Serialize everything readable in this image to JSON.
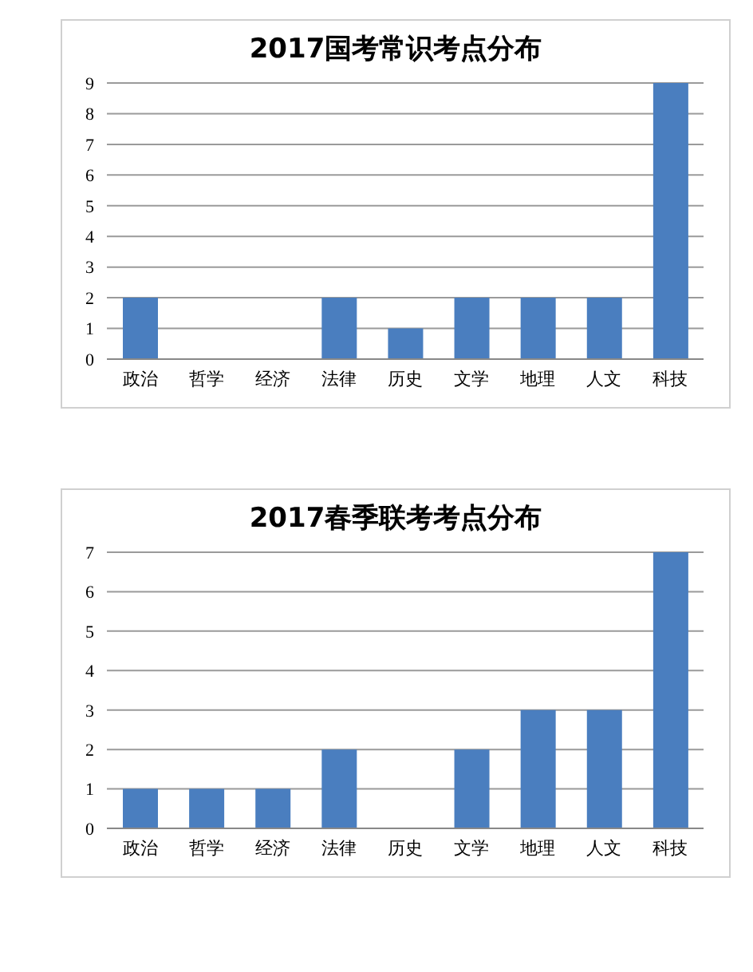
{
  "chart_data": [
    {
      "type": "bar",
      "title": "2017国考常识考点分布",
      "categories": [
        "政治",
        "哲学",
        "经济",
        "法律",
        "历史",
        "文学",
        "地理",
        "人文",
        "科技"
      ],
      "values": [
        2,
        0,
        0,
        2,
        1,
        2,
        2,
        2,
        9
      ],
      "color": "#4a7ebf",
      "ylim": [
        0,
        9
      ],
      "yticks": [
        0,
        1,
        2,
        3,
        4,
        5,
        6,
        7,
        8,
        9
      ],
      "grid": "y"
    },
    {
      "type": "bar",
      "title": "2017春季联考考点分布",
      "categories": [
        "政治",
        "哲学",
        "经济",
        "法律",
        "历史",
        "文学",
        "地理",
        "人文",
        "科技"
      ],
      "values": [
        1,
        1,
        1,
        2,
        0,
        2,
        3,
        3,
        7
      ],
      "color": "#4a7ebf",
      "ylim": [
        0,
        7
      ],
      "yticks": [
        0,
        1,
        2,
        3,
        4,
        5,
        6,
        7
      ],
      "grid": "y"
    }
  ]
}
